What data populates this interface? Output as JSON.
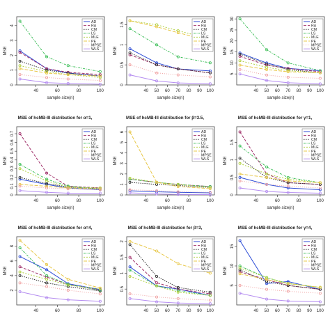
{
  "figure": {
    "legend_labels": [
      "AD",
      "RA",
      "CM",
      "LS",
      "MLE",
      "PE",
      "MPSE",
      "WLS"
    ],
    "series_colors": [
      "#2b4bd6",
      "#a0306a",
      "#333333",
      "#3fbf5a",
      "#b0d040",
      "#e8c84a",
      "#f0a0a0",
      "#b48cf0"
    ]
  },
  "chart_data": [
    {
      "type": "line",
      "title": "",
      "xlabel": "sample size(n)",
      "ylabel": "MSE",
      "xticks": [
        40,
        60,
        80,
        100
      ],
      "yticks": [
        0,
        1,
        2,
        3,
        4
      ],
      "xlim": [
        22,
        104
      ],
      "ylim": [
        0,
        4.6
      ],
      "x": [
        25,
        50,
        70,
        100
      ],
      "series": [
        {
          "name": "AD",
          "values": [
            2.3,
            1.1,
            0.8,
            0.6
          ]
        },
        {
          "name": "RA",
          "values": [
            2.2,
            1.1,
            0.85,
            0.7
          ]
        },
        {
          "name": "CM",
          "values": [
            1.6,
            1.0,
            0.8,
            0.6
          ]
        },
        {
          "name": "LS",
          "values": [
            4.3,
            1.9,
            1.3,
            0.9
          ]
        },
        {
          "name": "MLE",
          "values": [
            1.3,
            0.9,
            0.7,
            0.5
          ]
        },
        {
          "name": "PE",
          "values": [
            1.1,
            0.8,
            0.7,
            0.6
          ]
        },
        {
          "name": "MPSE",
          "values": [
            0.7,
            0.5,
            0.4,
            0.3
          ]
        },
        {
          "name": "WLS",
          "values": [
            0.4,
            0.15,
            0.1,
            0.05
          ]
        }
      ]
    },
    {
      "type": "line",
      "title": "",
      "xlabel": "sample size(n)",
      "ylabel": "MSE",
      "xticks": [
        40,
        50,
        60,
        70,
        80,
        90,
        100
      ],
      "yticks": [
        0.0,
        0.5,
        1.0,
        1.5
      ],
      "xlim": [
        22,
        104
      ],
      "ylim": [
        0,
        1.7
      ],
      "x": [
        25,
        50,
        70,
        100
      ],
      "series": [
        {
          "name": "AD",
          "values": [
            0.9,
            0.55,
            0.4,
            0.35
          ]
        },
        {
          "name": "RA",
          "values": [
            0.75,
            0.5,
            0.4,
            0.3
          ]
        },
        {
          "name": "CM",
          "values": [
            0.8,
            0.5,
            0.4,
            0.3
          ]
        },
        {
          "name": "LS",
          "values": [
            1.4,
            1.0,
            0.7,
            0.55
          ]
        },
        {
          "name": "MLE",
          "values": [
            1.6,
            1.5,
            1.35,
            1.15
          ]
        },
        {
          "name": "PE",
          "values": [
            1.6,
            1.45,
            1.3,
            1.1
          ]
        },
        {
          "name": "MPSE",
          "values": [
            0.5,
            0.3,
            0.25,
            0.2
          ]
        },
        {
          "name": "WLS",
          "values": [
            0.25,
            0.1,
            0.05,
            0.03
          ]
        }
      ]
    },
    {
      "type": "line",
      "title": "",
      "xlabel": "sample size(n)",
      "ylabel": "MSE",
      "xticks": [
        40,
        50,
        60,
        70,
        80,
        90,
        100
      ],
      "yticks": [
        5,
        10,
        15,
        20,
        25,
        30
      ],
      "xlim": [
        22,
        104
      ],
      "ylim": [
        0,
        31
      ],
      "x": [
        25,
        50,
        70,
        100
      ],
      "series": [
        {
          "name": "AD",
          "values": [
            14.5,
            10.0,
            7.5,
            6.5
          ]
        },
        {
          "name": "RA",
          "values": [
            13.0,
            9.0,
            7.5,
            6.0
          ]
        },
        {
          "name": "CM",
          "values": [
            14.0,
            9.5,
            7.0,
            5.5
          ]
        },
        {
          "name": "LS",
          "values": [
            30.0,
            16.0,
            10.0,
            6.5
          ]
        },
        {
          "name": "MLE",
          "values": [
            11.0,
            8.0,
            6.5,
            5.5
          ]
        },
        {
          "name": "PE",
          "values": [
            9.0,
            7.0,
            6.0,
            5.5
          ]
        },
        {
          "name": "MPSE",
          "values": [
            7.0,
            4.5,
            3.5,
            3.0
          ]
        },
        {
          "name": "WLS",
          "values": [
            5.0,
            2.0,
            1.0,
            0.5
          ]
        }
      ]
    },
    {
      "type": "line",
      "title": "MSE of hcMB-III distribution for α=1,",
      "xlabel": "sample size(n)",
      "ylabel": "MSE",
      "xticks": [
        40,
        60,
        80,
        100
      ],
      "yticks": [
        0.0,
        0.1,
        0.2,
        0.3,
        0.4,
        0.5,
        0.6,
        0.7
      ],
      "xlim": [
        22,
        104
      ],
      "ylim": [
        0,
        0.78
      ],
      "x": [
        25,
        50,
        70,
        100
      ],
      "series": [
        {
          "name": "AD",
          "values": [
            0.18,
            0.12,
            0.08,
            0.06
          ]
        },
        {
          "name": "RA",
          "values": [
            0.7,
            0.25,
            0.1,
            0.08
          ]
        },
        {
          "name": "CM",
          "values": [
            0.2,
            0.13,
            0.09,
            0.07
          ]
        },
        {
          "name": "LS",
          "values": [
            0.35,
            0.18,
            0.1,
            0.07
          ]
        },
        {
          "name": "MLE",
          "values": [
            0.3,
            0.16,
            0.09,
            0.08
          ]
        },
        {
          "name": "PE",
          "values": [
            0.12,
            0.1,
            0.08,
            0.07
          ]
        },
        {
          "name": "MPSE",
          "values": [
            0.1,
            0.08,
            0.07,
            0.06
          ]
        },
        {
          "name": "WLS",
          "values": [
            0.05,
            0.03,
            0.02,
            0.02
          ]
        }
      ]
    },
    {
      "type": "line",
      "title": "MSE of hcMB-III distribution for β=3.5,",
      "xlabel": "sample size(n)",
      "ylabel": "MSE",
      "xticks": [
        40,
        60,
        80,
        100
      ],
      "yticks": [
        0,
        1,
        2,
        3,
        4,
        5,
        6
      ],
      "xlim": [
        22,
        104
      ],
      "ylim": [
        0,
        6.5
      ],
      "x": [
        25,
        50,
        70,
        100
      ],
      "series": [
        {
          "name": "AD",
          "values": [
            0.4,
            0.3,
            0.25,
            0.2
          ]
        },
        {
          "name": "RA",
          "values": [
            1.5,
            1.2,
            1.0,
            0.8
          ]
        },
        {
          "name": "CM",
          "values": [
            1.2,
            1.0,
            0.9,
            0.7
          ]
        },
        {
          "name": "LS",
          "values": [
            1.5,
            1.2,
            1.0,
            0.8
          ]
        },
        {
          "name": "MLE",
          "values": [
            1.6,
            1.2,
            1.0,
            0.7
          ]
        },
        {
          "name": "PE",
          "values": [
            6.0,
            1.2,
            0.8,
            0.6
          ]
        },
        {
          "name": "MPSE",
          "values": [
            0.5,
            0.4,
            0.3,
            0.25
          ]
        },
        {
          "name": "WLS",
          "values": [
            0.2,
            0.1,
            0.05,
            0.03
          ]
        }
      ]
    },
    {
      "type": "line",
      "title": "MSE of hcMB-III distribution for γ=1,",
      "xlabel": "sample size(n)",
      "ylabel": "MSE",
      "xticks": [
        40,
        60,
        80,
        100
      ],
      "yticks": [
        0.0,
        0.5,
        1.0,
        1.5
      ],
      "xlim": [
        22,
        104
      ],
      "ylim": [
        0,
        1.95
      ],
      "x": [
        25,
        50,
        70,
        100
      ],
      "series": [
        {
          "name": "AD",
          "values": [
            0.5,
            0.3,
            0.2,
            0.15
          ]
        },
        {
          "name": "RA",
          "values": [
            1.8,
            0.6,
            0.35,
            0.3
          ]
        },
        {
          "name": "CM",
          "values": [
            1.05,
            0.5,
            0.35,
            0.3
          ]
        },
        {
          "name": "LS",
          "values": [
            1.4,
            0.8,
            0.5,
            0.35
          ]
        },
        {
          "name": "MLE",
          "values": [
            0.9,
            0.6,
            0.45,
            0.35
          ]
        },
        {
          "name": "PE",
          "values": [
            0.6,
            0.5,
            0.4,
            0.35
          ]
        },
        {
          "name": "MPSE",
          "values": [
            0.4,
            0.3,
            0.25,
            0.2
          ]
        },
        {
          "name": "WLS",
          "values": [
            0.2,
            0.1,
            0.07,
            0.05
          ]
        }
      ]
    },
    {
      "type": "line",
      "title": "MSE of hcMB-III distribution for α=4,",
      "xlabel": "",
      "ylabel": "MSE",
      "xticks": [
        40,
        60,
        80,
        100
      ],
      "yticks": [
        2,
        4,
        6,
        8
      ],
      "xlim": [
        22,
        104
      ],
      "ylim": [
        0,
        9.3
      ],
      "x": [
        25,
        50,
        70,
        100
      ],
      "series": [
        {
          "name": "AD",
          "values": [
            6.6,
            4.8,
            2.9,
            2.1
          ]
        },
        {
          "name": "RA",
          "values": [
            5.2,
            3.8,
            2.8,
            2.0
          ]
        },
        {
          "name": "CM",
          "values": [
            4.0,
            3.0,
            2.5,
            1.9
          ]
        },
        {
          "name": "LS",
          "values": [
            7.8,
            4.0,
            2.8,
            2.0
          ]
        },
        {
          "name": "MLE",
          "values": [
            4.5,
            3.5,
            2.7,
            2.2
          ]
        },
        {
          "name": "PE",
          "values": [
            8.8,
            5.5,
            3.5,
            2.3
          ]
        },
        {
          "name": "MPSE",
          "values": [
            3.0,
            2.5,
            2.0,
            1.5
          ]
        },
        {
          "name": "WLS",
          "values": [
            1.8,
            1.0,
            0.7,
            0.5
          ]
        }
      ]
    },
    {
      "type": "line",
      "title": "MSE of hcMB-III distribution for β=3,",
      "xlabel": "",
      "ylabel": "MSE",
      "xticks": [
        40,
        50,
        60,
        70,
        80,
        90,
        100
      ],
      "yticks": [
        0.5,
        1.0,
        1.5,
        2.0
      ],
      "xlim": [
        22,
        104
      ],
      "ylim": [
        0,
        2.15
      ],
      "x": [
        25,
        50,
        70,
        100
      ],
      "series": [
        {
          "name": "AD",
          "values": [
            1.2,
            0.6,
            0.5,
            0.3
          ]
        },
        {
          "name": "RA",
          "values": [
            1.5,
            0.7,
            0.5,
            0.35
          ]
        },
        {
          "name": "CM",
          "values": [
            1.9,
            0.9,
            0.55,
            0.4
          ]
        },
        {
          "name": "LS",
          "values": [
            1.1,
            0.6,
            0.45,
            0.3
          ]
        },
        {
          "name": "MLE",
          "values": [
            0.9,
            0.6,
            0.4,
            0.3
          ]
        },
        {
          "name": "PE",
          "values": [
            2.0,
            1.7,
            1.3,
            1.0
          ]
        },
        {
          "name": "MPSE",
          "values": [
            0.35,
            0.25,
            0.2,
            0.15
          ]
        },
        {
          "name": "WLS",
          "values": [
            0.2,
            0.1,
            0.06,
            0.04
          ]
        }
      ]
    },
    {
      "type": "line",
      "title": "MSE of hcMB-III distribution for γ=4,",
      "xlabel": "",
      "ylabel": "MSE",
      "xticks": [
        40,
        50,
        60,
        70,
        80,
        90,
        100
      ],
      "yticks": [
        5,
        10,
        15
      ],
      "xlim": [
        22,
        104
      ],
      "ylim": [
        0,
        17.5
      ],
      "x": [
        25,
        50,
        70,
        100
      ],
      "series": [
        {
          "name": "AD",
          "values": [
            16.5,
            5.5,
            6.0,
            4.0
          ]
        },
        {
          "name": "RA",
          "values": [
            8.5,
            6.5,
            5.0,
            4.0
          ]
        },
        {
          "name": "CM",
          "values": [
            9.0,
            6.0,
            5.0,
            4.0
          ]
        },
        {
          "name": "LS",
          "values": [
            10.0,
            7.0,
            5.5,
            4.5
          ]
        },
        {
          "name": "MLE",
          "values": [
            9.5,
            7.0,
            5.5,
            4.5
          ]
        },
        {
          "name": "PE",
          "values": [
            8.0,
            6.5,
            5.5,
            4.5
          ]
        },
        {
          "name": "MPSE",
          "values": [
            5.0,
            4.0,
            3.5,
            3.0
          ]
        },
        {
          "name": "WLS",
          "values": [
            3.0,
            1.5,
            1.0,
            0.8
          ]
        }
      ]
    }
  ]
}
